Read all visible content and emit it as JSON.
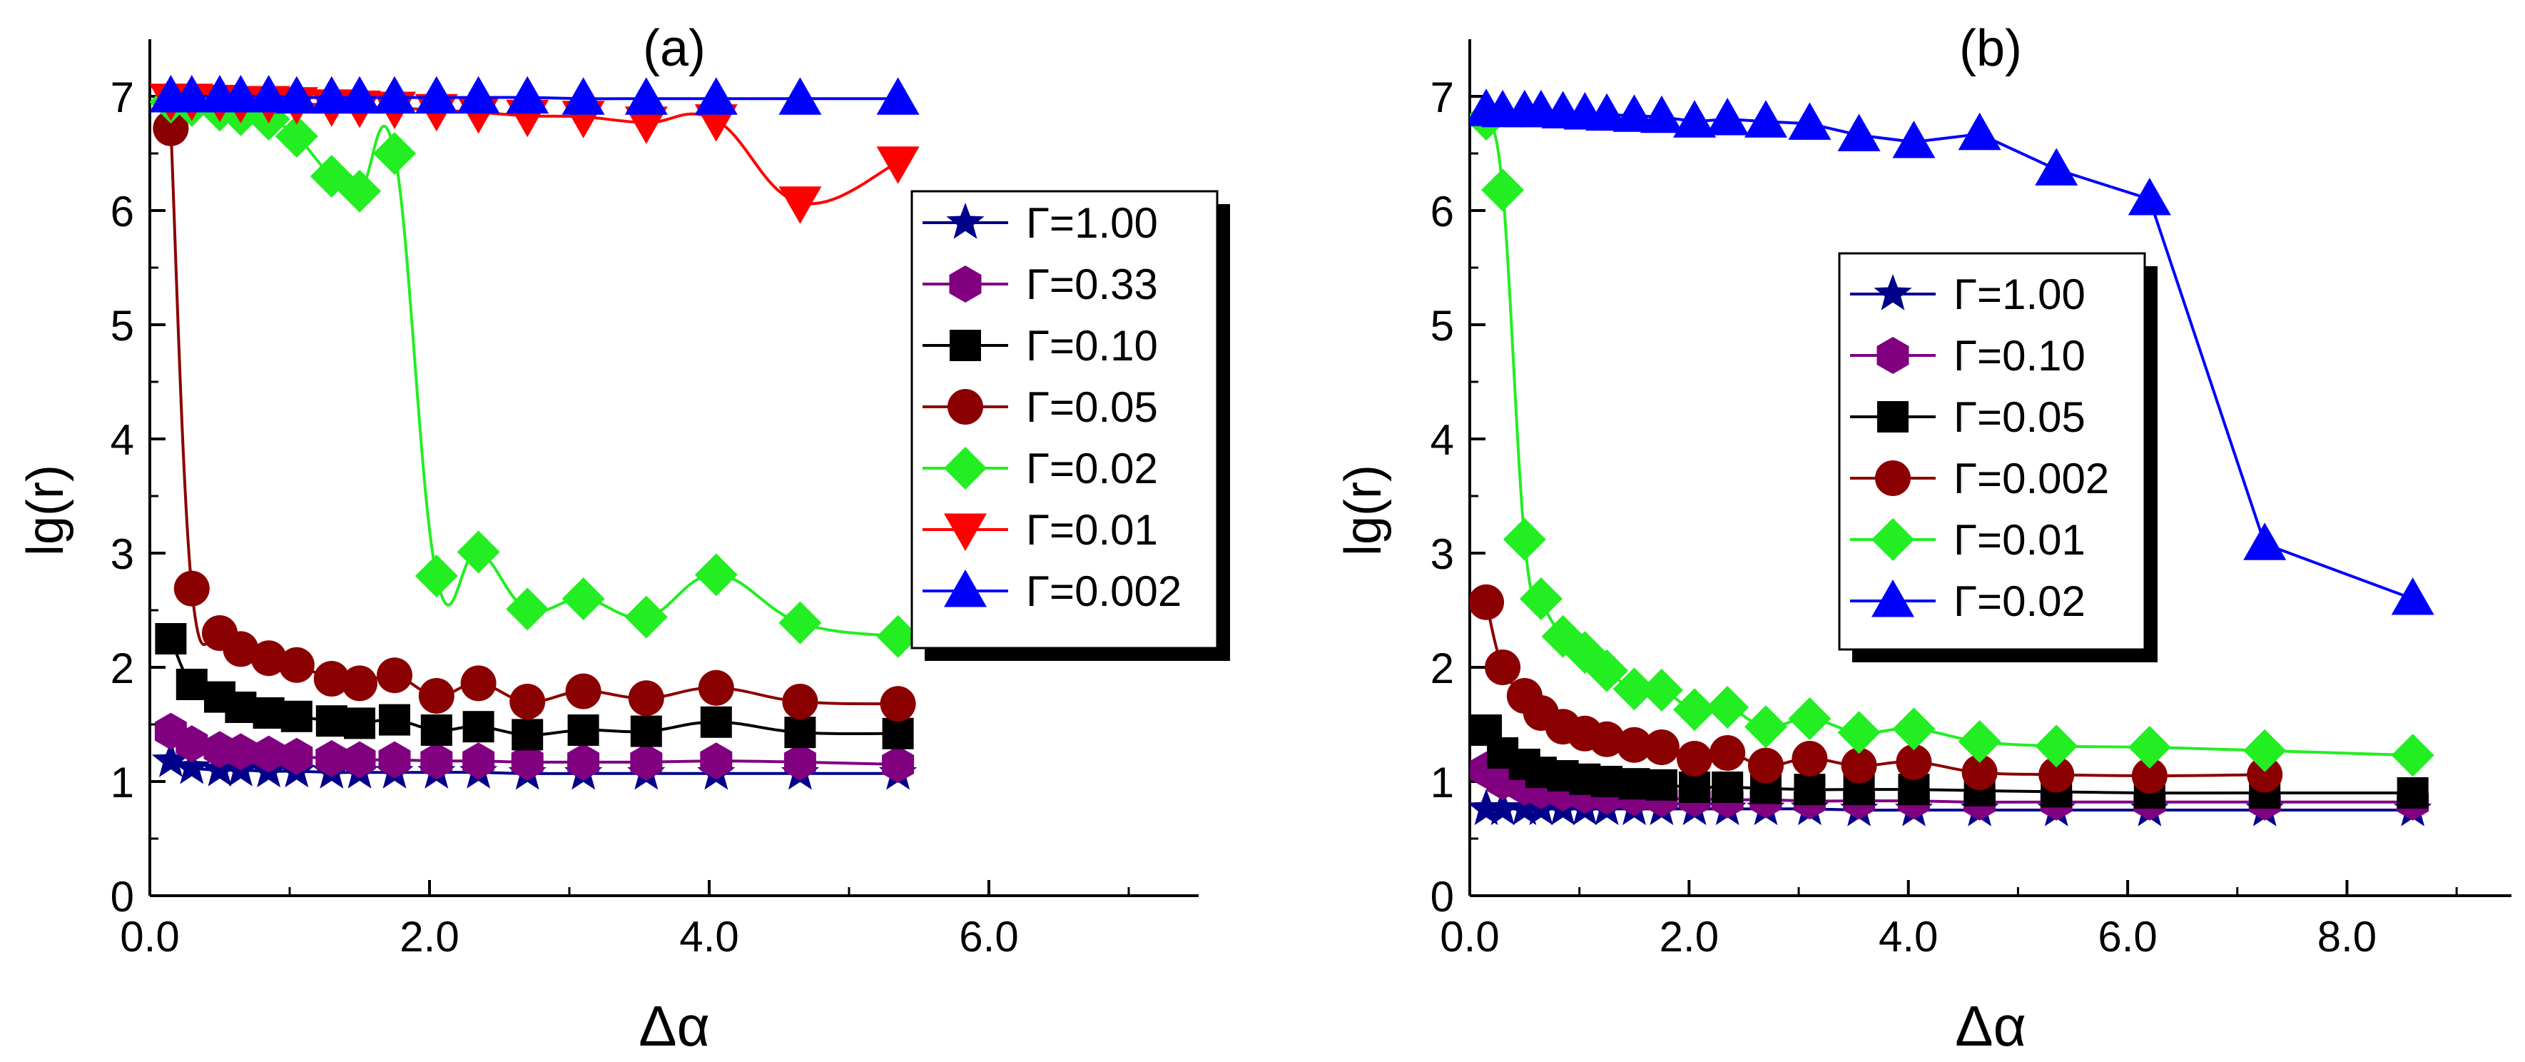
{
  "chart_data": [
    {
      "type": "line",
      "title": "(a)",
      "xlabel": "Δα",
      "ylabel": "lg(r)",
      "xlim": [
        0,
        7.5
      ],
      "ylim": [
        0,
        7.5
      ],
      "x_ticks": [
        "0.0",
        "2.0",
        "4.0",
        "6.0"
      ],
      "y_ticks": [
        "0",
        "1",
        "2",
        "3",
        "4",
        "5",
        "6",
        "7"
      ],
      "legend_position": "right",
      "series": [
        {
          "name": "Γ=1.00",
          "color": "#00008B",
          "marker": "star",
          "x": [
            0.15,
            0.3,
            0.5,
            0.65,
            0.85,
            1.05,
            1.3,
            1.5,
            1.75,
            2.05,
            2.35,
            2.7,
            3.1,
            3.55,
            4.05,
            4.65,
            5.35
          ],
          "y": [
            1.18,
            1.12,
            1.1,
            1.1,
            1.09,
            1.09,
            1.08,
            1.08,
            1.08,
            1.08,
            1.08,
            1.07,
            1.07,
            1.07,
            1.07,
            1.07,
            1.07
          ]
        },
        {
          "name": "Γ=0.33",
          "color": "#800080",
          "marker": "hexagon",
          "x": [
            0.15,
            0.3,
            0.5,
            0.65,
            0.85,
            1.05,
            1.3,
            1.5,
            1.75,
            2.05,
            2.35,
            2.7,
            3.1,
            3.55,
            4.05,
            4.65,
            5.35
          ],
          "y": [
            1.44,
            1.33,
            1.28,
            1.26,
            1.24,
            1.22,
            1.2,
            1.19,
            1.19,
            1.18,
            1.18,
            1.17,
            1.17,
            1.17,
            1.18,
            1.17,
            1.15
          ]
        },
        {
          "name": "Γ=0.10",
          "color": "#000000",
          "marker": "square",
          "x": [
            0.15,
            0.3,
            0.5,
            0.65,
            0.85,
            1.05,
            1.3,
            1.5,
            1.75,
            2.05,
            2.35,
            2.7,
            3.1,
            3.55,
            4.05,
            4.65,
            5.35
          ],
          "y": [
            2.25,
            1.85,
            1.74,
            1.65,
            1.6,
            1.57,
            1.53,
            1.51,
            1.54,
            1.45,
            1.48,
            1.41,
            1.45,
            1.44,
            1.52,
            1.43,
            1.42
          ]
        },
        {
          "name": "Γ=0.05",
          "color": "#8B0000",
          "marker": "circle",
          "x": [
            0.15,
            0.3,
            0.5,
            0.65,
            0.85,
            1.05,
            1.3,
            1.5,
            1.75,
            2.05,
            2.35,
            2.7,
            3.1,
            3.55,
            4.05,
            4.65,
            5.35
          ],
          "y": [
            6.72,
            2.69,
            2.3,
            2.16,
            2.08,
            2.02,
            1.9,
            1.86,
            1.93,
            1.75,
            1.86,
            1.7,
            1.79,
            1.73,
            1.82,
            1.7,
            1.68
          ]
        },
        {
          "name": "Γ=0.02",
          "color": "#22EE22",
          "marker": "diamond",
          "x": [
            0.15,
            0.3,
            0.5,
            0.65,
            0.85,
            1.05,
            1.3,
            1.5,
            1.75,
            2.05,
            2.35,
            2.7,
            3.1,
            3.55,
            4.05,
            4.65,
            5.35
          ],
          "y": [
            6.95,
            6.92,
            6.88,
            6.84,
            6.8,
            6.65,
            6.3,
            6.17,
            6.5,
            2.8,
            3.01,
            2.51,
            2.6,
            2.44,
            2.81,
            2.39,
            2.27
          ]
        },
        {
          "name": "Γ=0.01",
          "color": "#FF0000",
          "marker": "triangle-down",
          "x": [
            0.15,
            0.3,
            0.5,
            0.65,
            0.85,
            1.05,
            1.3,
            1.5,
            1.75,
            2.05,
            2.35,
            2.7,
            3.1,
            3.55,
            4.05,
            4.65,
            5.35
          ],
          "y": [
            6.97,
            6.97,
            6.96,
            6.95,
            6.95,
            6.94,
            6.92,
            6.91,
            6.9,
            6.88,
            6.86,
            6.83,
            6.82,
            6.77,
            6.79,
            6.07,
            6.42
          ]
        },
        {
          "name": "Γ=0.002",
          "color": "#0000FF",
          "marker": "triangle-up",
          "x": [
            0.15,
            0.3,
            0.5,
            0.65,
            0.85,
            1.05,
            1.3,
            1.5,
            1.75,
            2.05,
            2.35,
            2.7,
            3.1,
            3.55,
            4.05,
            4.65,
            5.35
          ],
          "y": [
            7.0,
            7.0,
            7.0,
            7.0,
            7.0,
            6.99,
            6.99,
            6.99,
            6.99,
            6.99,
            6.99,
            6.99,
            6.98,
            6.98,
            6.98,
            6.98,
            6.98
          ]
        }
      ]
    },
    {
      "type": "line",
      "title": "(b)",
      "xlabel": "Δα",
      "ylabel": "lg(r)",
      "xlim": [
        0,
        9.5
      ],
      "ylim": [
        0,
        7.5
      ],
      "x_ticks": [
        "0.0",
        "2.0",
        "4.0",
        "6.0",
        "8.0"
      ],
      "y_ticks": [
        "0",
        "1",
        "2",
        "3",
        "4",
        "5",
        "6",
        "7"
      ],
      "legend_position": "center-right",
      "series": [
        {
          "name": "Γ=1.00",
          "color": "#00008B",
          "marker": "star",
          "x": [
            0.15,
            0.3,
            0.5,
            0.65,
            0.85,
            1.05,
            1.25,
            1.5,
            1.75,
            2.05,
            2.35,
            2.7,
            3.1,
            3.55,
            4.05,
            4.65,
            5.35,
            6.2,
            7.25,
            8.6
          ],
          "y": [
            0.76,
            0.76,
            0.76,
            0.76,
            0.76,
            0.76,
            0.76,
            0.76,
            0.76,
            0.76,
            0.76,
            0.76,
            0.76,
            0.75,
            0.75,
            0.75,
            0.75,
            0.75,
            0.75,
            0.75
          ]
        },
        {
          "name": "Γ=0.10",
          "color": "#800080",
          "marker": "hexagon",
          "x": [
            0.15,
            0.3,
            0.5,
            0.65,
            0.85,
            1.05,
            1.25,
            1.5,
            1.75,
            2.05,
            2.35,
            2.7,
            3.1,
            3.55,
            4.05,
            4.65,
            5.35,
            6.2,
            7.25,
            8.6
          ],
          "y": [
            1.1,
            1.0,
            0.95,
            0.92,
            0.9,
            0.88,
            0.87,
            0.86,
            0.85,
            0.85,
            0.84,
            0.84,
            0.83,
            0.83,
            0.83,
            0.82,
            0.82,
            0.82,
            0.82,
            0.82
          ]
        },
        {
          "name": "Γ=0.05",
          "color": "#000000",
          "marker": "square",
          "x": [
            0.15,
            0.3,
            0.5,
            0.65,
            0.85,
            1.05,
            1.25,
            1.5,
            1.75,
            2.05,
            2.35,
            2.7,
            3.1,
            3.55,
            4.05,
            4.65,
            5.35,
            6.2,
            7.25,
            8.6
          ],
          "y": [
            1.45,
            1.25,
            1.15,
            1.08,
            1.05,
            1.02,
            1.0,
            0.98,
            0.97,
            0.95,
            0.95,
            0.94,
            0.93,
            0.93,
            0.93,
            0.92,
            0.91,
            0.9,
            0.9,
            0.9
          ]
        },
        {
          "name": "Γ=0.002",
          "color": "#8B0000",
          "marker": "circle",
          "x": [
            0.15,
            0.3,
            0.5,
            0.65,
            0.85,
            1.05,
            1.25,
            1.5,
            1.75,
            2.05,
            2.35,
            2.7,
            3.1,
            3.55,
            4.05,
            4.65,
            5.35,
            6.2,
            7.25
          ],
          "y": [
            2.57,
            2.0,
            1.75,
            1.6,
            1.48,
            1.42,
            1.37,
            1.32,
            1.3,
            1.2,
            1.25,
            1.14,
            1.2,
            1.14,
            1.17,
            1.08,
            1.06,
            1.05,
            1.06
          ]
        },
        {
          "name": "Γ=0.01",
          "color": "#22EE22",
          "marker": "diamond",
          "x": [
            0.15,
            0.3,
            0.5,
            0.65,
            0.85,
            1.05,
            1.25,
            1.5,
            1.75,
            2.05,
            2.35,
            2.7,
            3.1,
            3.55,
            4.05,
            4.65,
            5.35,
            6.2,
            7.25,
            8.6
          ],
          "y": [
            6.8,
            6.18,
            3.12,
            2.6,
            2.27,
            2.13,
            1.97,
            1.81,
            1.8,
            1.63,
            1.65,
            1.48,
            1.55,
            1.43,
            1.46,
            1.35,
            1.31,
            1.3,
            1.27,
            1.23
          ]
        },
        {
          "name": "Γ=0.02",
          "color": "#0000FF",
          "marker": "triangle-up",
          "x": [
            0.15,
            0.3,
            0.5,
            0.65,
            0.85,
            1.05,
            1.25,
            1.5,
            1.75,
            2.05,
            2.35,
            2.7,
            3.1,
            3.55,
            4.05,
            4.65,
            5.35,
            6.2,
            7.25,
            8.6
          ],
          "y": [
            6.88,
            6.87,
            6.87,
            6.87,
            6.86,
            6.85,
            6.84,
            6.83,
            6.82,
            6.78,
            6.8,
            6.78,
            6.76,
            6.66,
            6.6,
            6.67,
            6.36,
            6.1,
            3.08,
            2.6
          ]
        }
      ]
    }
  ]
}
